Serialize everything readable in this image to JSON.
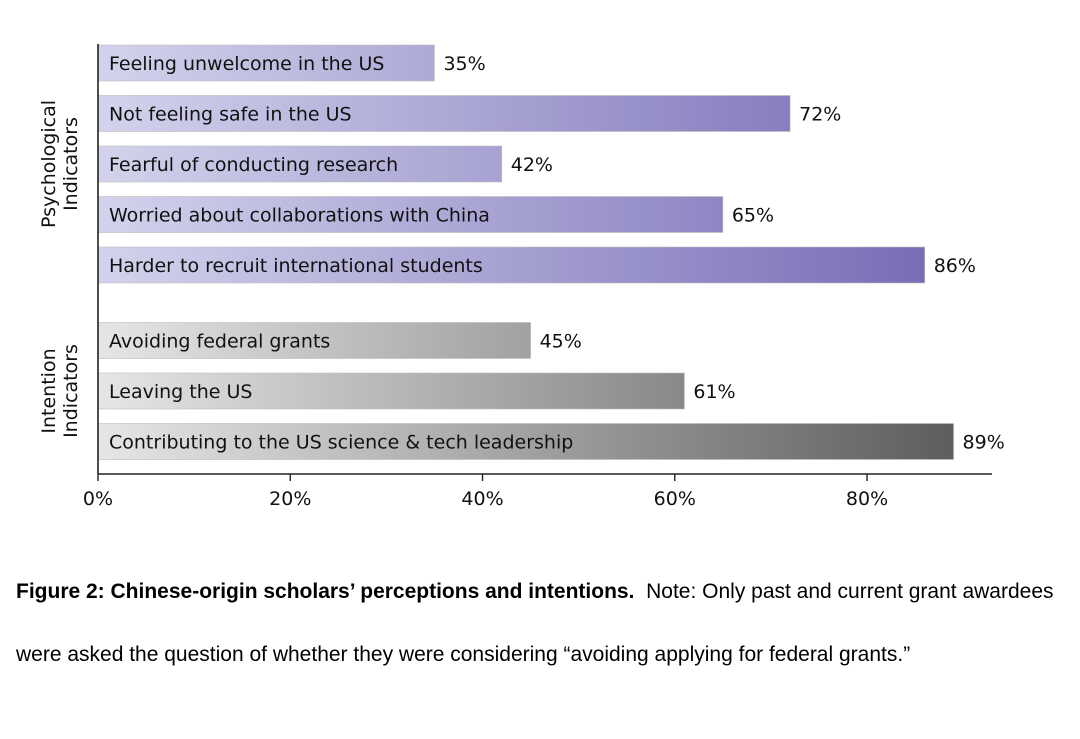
{
  "chart_data": {
    "type": "bar",
    "orientation": "horizontal",
    "groups": [
      {
        "name": "Psychological\nIndicators",
        "color_light": "#d3d3ec",
        "color_dark": "#7469b4",
        "items": [
          {
            "label": "Feeling unwelcome in the US",
            "value": 35,
            "value_label": "35%"
          },
          {
            "label": "Not feeling safe in the US",
            "value": 72,
            "value_label": "72%"
          },
          {
            "label": "Fearful of conducting research",
            "value": 42,
            "value_label": "42%"
          },
          {
            "label": "Worried about collaborations with China",
            "value": 65,
            "value_label": "65%"
          },
          {
            "label": "Harder to recruit international students",
            "value": 86,
            "value_label": "86%"
          }
        ]
      },
      {
        "name": "Intention\nIndicators",
        "color_light": "#e6e6e6",
        "color_dark": "#5c5c5c",
        "items": [
          {
            "label": "Avoiding federal grants",
            "value": 45,
            "value_label": "45%"
          },
          {
            "label": "Leaving the US",
            "value": 61,
            "value_label": "61%"
          },
          {
            "label": "Contributing to the US science & tech leadership",
            "value": 89,
            "value_label": "89%"
          }
        ]
      }
    ],
    "x_ticks": [
      {
        "value": 0,
        "label": "0%"
      },
      {
        "value": 20,
        "label": "20%"
      },
      {
        "value": 40,
        "label": "40%"
      },
      {
        "value": 60,
        "label": "60%"
      },
      {
        "value": 80,
        "label": "80%"
      }
    ],
    "xlim": [
      0,
      93
    ],
    "grid": false
  },
  "caption": {
    "title": "Figure 2: Chinese-origin scholars’ perceptions and intentions.",
    "note": "Note: Only past and current grant awardees were asked the question of whether they were considering “avoiding applying for federal grants.”"
  }
}
